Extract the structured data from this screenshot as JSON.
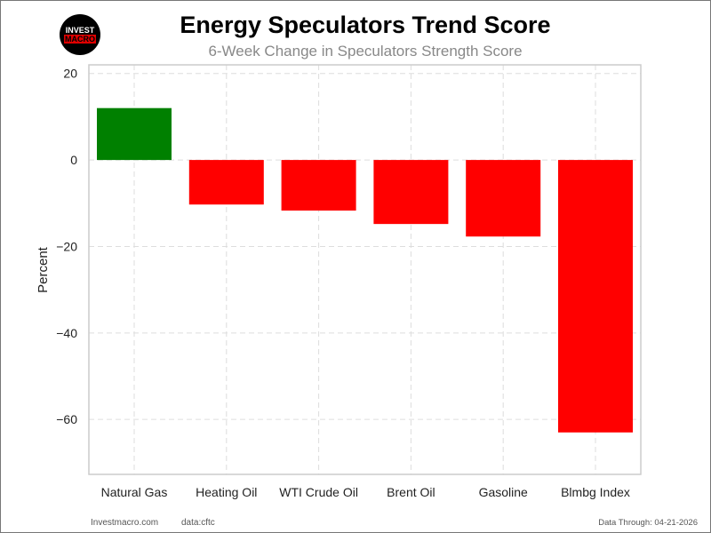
{
  "title": "Energy Speculators Trend Score",
  "subtitle": "6-Week Change in Speculators Strength Score",
  "logo": {
    "line1": "INVEST",
    "line2": "MACRO"
  },
  "footer": {
    "site": "Investmacro.com",
    "source": "data:cftc",
    "date": "Data Through: 04-21-2026"
  },
  "colors": {
    "positive": "#008000",
    "negative": "#ff0000"
  },
  "chart_data": {
    "type": "bar",
    "title": "Energy Speculators Trend Score",
    "subtitle": "6-Week Change in Speculators Strength Score",
    "xlabel": "",
    "ylabel": "Percent",
    "categories": [
      "Natural Gas",
      "Heating Oil",
      "WTI Crude Oil",
      "Brent Oil",
      "Gasoline",
      "Blmbg Index"
    ],
    "values": [
      12.0,
      -10.3,
      -11.7,
      -14.8,
      -17.7,
      -63.0
    ],
    "ylim": [
      -72.7,
      22
    ],
    "yticks": [
      20,
      0,
      -20,
      -40,
      -60
    ],
    "ytick_labels": [
      "20",
      "0",
      "−20",
      "−40",
      "−60"
    ],
    "grid": true
  }
}
